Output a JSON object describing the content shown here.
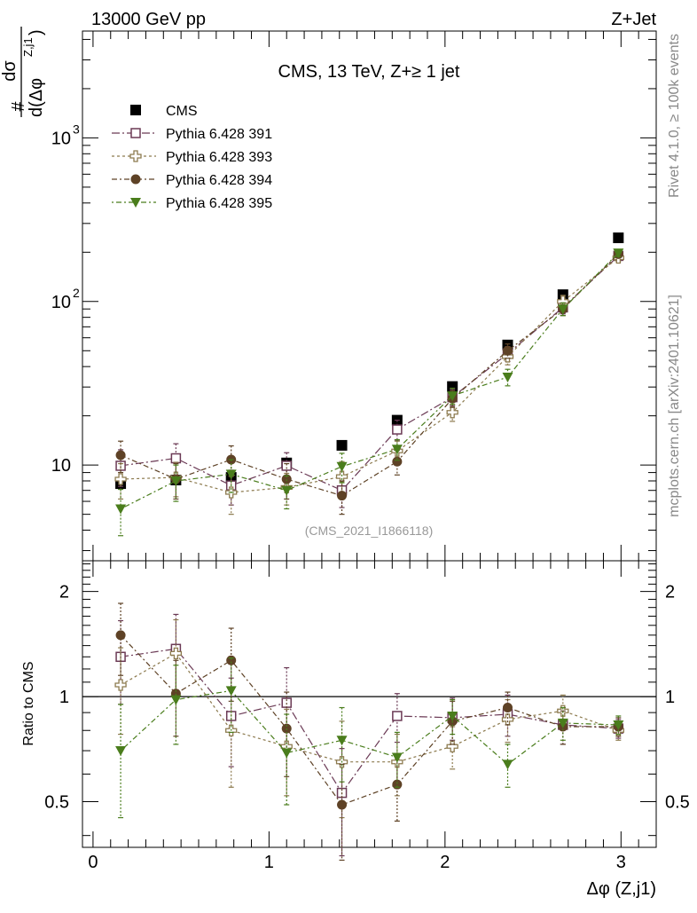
{
  "header": {
    "left": "13000 GeV pp",
    "right": "Z+Jet"
  },
  "side_labels": {
    "rivet": "Rivet 4.1.0, ≥ 100k events",
    "mcplots": "mcplots.cern.ch [arXiv:2401.10621]"
  },
  "watermark": "(CMS_2021_I1866118)",
  "colors": {
    "cms": "#000000",
    "p391": "#6b3a55",
    "p393": "#8c7a4e",
    "p394": "#5e4226",
    "p395": "#4a7d1c"
  },
  "chart_data": [
    {
      "type": "scatter",
      "panel": "main",
      "title": "CMS, 13 TeV, Z+≥ 1 jet",
      "ylabel_num": "dσ",
      "ylabel_den": "d(Δφ",
      "ylabel_sup": "Z,j1",
      "ylabel_prefix": "#",
      "yscale": "log",
      "ylim": [
        2.6,
        4500
      ],
      "xlim": [
        -0.06,
        3.2
      ],
      "yticks": [
        {
          "v": 10,
          "label": "10"
        },
        {
          "v": 100,
          "label": "10"
        },
        {
          "v": 1000,
          "label": "10"
        }
      ],
      "yticks_sup": [
        "",
        "2",
        "3"
      ],
      "x": [
        0.157,
        0.471,
        0.785,
        1.1,
        1.414,
        1.728,
        2.042,
        2.356,
        2.67,
        2.985
      ],
      "series": [
        {
          "name": "CMS",
          "key": "cms",
          "marker": "fsquare",
          "values": [
            7.7,
            8.1,
            8.4,
            10.3,
            13.2,
            18.8,
            30.2,
            54.2,
            110,
            245
          ],
          "err": [
            0.5,
            0.4,
            0.4,
            0.4,
            0.4,
            0.5,
            0.8,
            1.2,
            2.5,
            5
          ]
        },
        {
          "name": "Pythia 6.428 391",
          "key": "p391",
          "marker": "osquare",
          "values": [
            9.9,
            11.0,
            7.5,
            9.9,
            7.0,
            16.5,
            26.0,
            48.0,
            92,
            190
          ],
          "err": [
            2.5,
            2.5,
            1.8,
            2.0,
            1.5,
            2.3,
            3.0,
            5.0,
            8,
            10
          ]
        },
        {
          "name": "Pythia 6.428 393",
          "key": "p393",
          "marker": "ocross",
          "values": [
            8.2,
            8.4,
            6.8,
            7.3,
            8.5,
            12.2,
            21.0,
            46.0,
            100,
            185
          ],
          "err": [
            2.0,
            2.0,
            1.8,
            1.6,
            2.0,
            1.8,
            2.5,
            5.0,
            9,
            10
          ]
        },
        {
          "name": "Pythia 6.428 394",
          "key": "p394",
          "marker": "fcircle",
          "values": [
            11.5,
            8.2,
            10.8,
            8.2,
            6.5,
            10.5,
            25.5,
            50.0,
            90,
            195
          ],
          "err": [
            2.5,
            2.0,
            2.3,
            2.0,
            1.5,
            1.8,
            3.0,
            5.0,
            8,
            10
          ]
        },
        {
          "name": "Pythia 6.428 395",
          "key": "p395",
          "marker": "ftri",
          "values": [
            5.4,
            8.0,
            8.8,
            7.0,
            9.8,
            12.5,
            26.5,
            34.5,
            90,
            198
          ],
          "err": [
            1.7,
            2.0,
            2.0,
            1.6,
            2.0,
            1.8,
            3.0,
            4.0,
            8,
            10
          ]
        }
      ]
    },
    {
      "type": "scatter",
      "panel": "ratio",
      "ylabel": "Ratio to CMS",
      "xlabel": "Δφ (Z,j1)",
      "yscale": "log",
      "ylim": [
        0.37,
        2.45
      ],
      "xlim": [
        -0.06,
        3.2
      ],
      "yticks": [
        {
          "v": 0.5,
          "label": "0.5"
        },
        {
          "v": 1,
          "label": "1"
        },
        {
          "v": 2,
          "label": "2"
        }
      ],
      "xticks": [
        {
          "v": 0,
          "label": "0"
        },
        {
          "v": 1,
          "label": "1"
        },
        {
          "v": 2,
          "label": "2"
        },
        {
          "v": 3,
          "label": "3"
        }
      ],
      "x": [
        0.157,
        0.471,
        0.785,
        1.1,
        1.414,
        1.728,
        2.042,
        2.356,
        2.67,
        2.985
      ],
      "series": [
        {
          "name": "Pythia 6.428 391",
          "key": "p391",
          "marker": "osquare",
          "values": [
            1.3,
            1.37,
            0.88,
            0.96,
            0.53,
            0.88,
            0.87,
            0.89,
            0.83,
            0.81
          ],
          "err": [
            0.35,
            0.35,
            0.25,
            0.25,
            0.18,
            0.14,
            0.12,
            0.12,
            0.1,
            0.05
          ]
        },
        {
          "name": "Pythia 6.428 393",
          "key": "p393",
          "marker": "ocross",
          "values": [
            1.08,
            1.33,
            0.8,
            0.72,
            0.65,
            0.65,
            0.72,
            0.86,
            0.91,
            0.8
          ],
          "err": [
            0.3,
            0.33,
            0.25,
            0.2,
            0.2,
            0.13,
            0.1,
            0.12,
            0.1,
            0.05
          ]
        },
        {
          "name": "Pythia 6.428 394",
          "key": "p394",
          "marker": "fcircle",
          "values": [
            1.5,
            1.02,
            1.27,
            0.81,
            0.49,
            0.56,
            0.85,
            0.93,
            0.82,
            0.82
          ],
          "err": [
            0.35,
            0.25,
            0.3,
            0.22,
            0.15,
            0.12,
            0.12,
            0.1,
            0.09,
            0.05
          ]
        },
        {
          "name": "Pythia 6.428 395",
          "key": "p395",
          "marker": "ftri",
          "values": [
            0.7,
            0.98,
            1.04,
            0.69,
            0.75,
            0.67,
            0.88,
            0.64,
            0.84,
            0.83
          ],
          "err": [
            0.25,
            0.25,
            0.25,
            0.2,
            0.18,
            0.12,
            0.1,
            0.09,
            0.09,
            0.05
          ]
        }
      ]
    }
  ]
}
